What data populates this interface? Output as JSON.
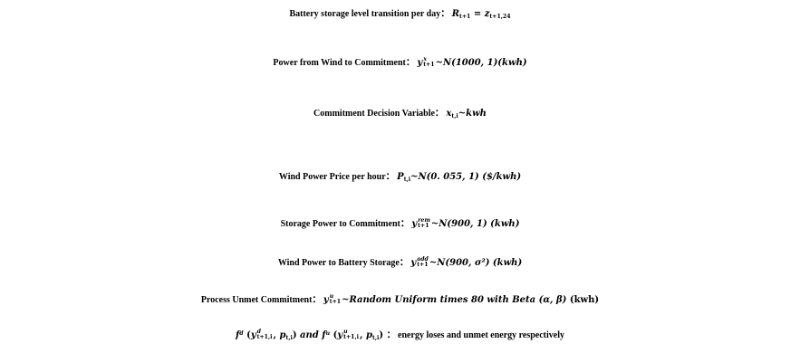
{
  "line1": {
    "label": "Battery storage level transition per day：",
    "R": "R",
    "R_sub": "t+1",
    "eq": " = ",
    "z": "z",
    "z_sub": "t+1,24"
  },
  "line2": {
    "label": "Power from Wind to Commitment：",
    "y": "y",
    "sup": "x",
    "sub": "t+1",
    "rest": "~N(1000, 1)(kwh)"
  },
  "line3": {
    "label": "Commitment Decision Variable：",
    "x": "x",
    "sub": "t,i",
    "rest": "~kwh"
  },
  "line4": {
    "label": "Wind Power Price per hour：",
    "P": "P",
    "sub": "t,i",
    "rest": "~N(0. 055, 1) ($/kwh)"
  },
  "line5": {
    "label": "Storage Power to Commitment：",
    "y": "y",
    "sup": "rem",
    "sub": "t+1",
    "rest": "~N(900, 1) (kwh)"
  },
  "line6": {
    "label": "Wind Power to Battery Storage：",
    "y": "y",
    "sup": "add",
    "sub": "t+1",
    "rest": "~N(900, σ²) (kwh)"
  },
  "line7": {
    "label": "Process Unmet Commitment：",
    "y": "y",
    "sup": "u",
    "sub": "t+1",
    "rest_a": "~Random Uniform times 80 with Beta (α, β)",
    "rest_b": " (kwh)"
  },
  "line8": {
    "f1": "f",
    "f1_sup": "d",
    "open1": " (",
    "y1": "y",
    "y1_sup": "d",
    "y1_sub": "t+1,i",
    "comma1": ", ",
    "p1": "p",
    "p1_sub": "t,i",
    "close1": ")",
    "and": " and ",
    "f2": "f",
    "f2_sup": "u",
    "open2": " (",
    "y2": "y",
    "y2_sup": "u",
    "y2_sub": "t+1,i",
    "comma2": ", ",
    "p2": "p",
    "p2_sub": "t,i",
    "close2": ")",
    "label": "： energy loses and unmet energy respectively"
  }
}
